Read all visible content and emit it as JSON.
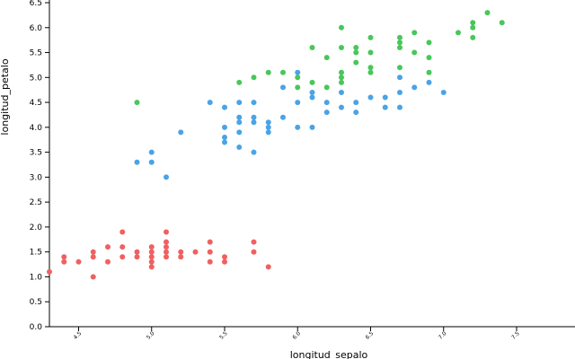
{
  "chart_data": {
    "type": "scatter",
    "xlabel": "longitud_sepalo",
    "ylabel": "longitud_petalo",
    "xlim": [
      4.3,
      7.9
    ],
    "ylim": [
      0,
      6.5
    ],
    "x_ticks": [
      "4.5",
      "5.0",
      "5.5",
      "6.0",
      "6.5",
      "7.0",
      "7.5"
    ],
    "y_ticks": [
      "0.0",
      "0.5",
      "1.0",
      "1.5",
      "2.0",
      "2.5",
      "3.0",
      "3.5",
      "4.0",
      "4.5",
      "5.0",
      "5.5",
      "6.0",
      "6.5"
    ],
    "grid": false,
    "series": [
      {
        "color": "#f06060",
        "points": [
          [
            4.3,
            1.1
          ],
          [
            4.4,
            1.3
          ],
          [
            4.4,
            1.4
          ],
          [
            4.5,
            1.3
          ],
          [
            4.6,
            1.0
          ],
          [
            4.6,
            1.4
          ],
          [
            4.6,
            1.5
          ],
          [
            4.7,
            1.3
          ],
          [
            4.7,
            1.6
          ],
          [
            4.8,
            1.4
          ],
          [
            4.8,
            1.6
          ],
          [
            4.8,
            1.9
          ],
          [
            4.9,
            1.4
          ],
          [
            4.9,
            1.5
          ],
          [
            5.0,
            1.2
          ],
          [
            5.0,
            1.3
          ],
          [
            5.0,
            1.4
          ],
          [
            5.0,
            1.5
          ],
          [
            5.0,
            1.6
          ],
          [
            5.1,
            1.4
          ],
          [
            5.1,
            1.5
          ],
          [
            5.1,
            1.6
          ],
          [
            5.1,
            1.7
          ],
          [
            5.1,
            1.9
          ],
          [
            5.2,
            1.4
          ],
          [
            5.2,
            1.5
          ],
          [
            5.3,
            1.5
          ],
          [
            5.4,
            1.3
          ],
          [
            5.4,
            1.5
          ],
          [
            5.4,
            1.7
          ],
          [
            5.5,
            1.3
          ],
          [
            5.5,
            1.4
          ],
          [
            5.7,
            1.5
          ],
          [
            5.7,
            1.7
          ],
          [
            5.8,
            1.2
          ]
        ]
      },
      {
        "color": "#4aa3e6",
        "points": [
          [
            4.9,
            3.3
          ],
          [
            5.0,
            3.3
          ],
          [
            5.0,
            3.5
          ],
          [
            5.1,
            3.0
          ],
          [
            5.2,
            3.9
          ],
          [
            5.4,
            4.5
          ],
          [
            5.5,
            3.7
          ],
          [
            5.5,
            3.8
          ],
          [
            5.5,
            4.0
          ],
          [
            5.5,
            4.4
          ],
          [
            5.6,
            3.6
          ],
          [
            5.6,
            3.9
          ],
          [
            5.6,
            4.1
          ],
          [
            5.6,
            4.2
          ],
          [
            5.6,
            4.5
          ],
          [
            5.7,
            3.5
          ],
          [
            5.7,
            4.1
          ],
          [
            5.7,
            4.2
          ],
          [
            5.7,
            4.5
          ],
          [
            5.8,
            3.9
          ],
          [
            5.8,
            4.0
          ],
          [
            5.8,
            4.1
          ],
          [
            5.9,
            4.2
          ],
          [
            5.9,
            4.8
          ],
          [
            6.0,
            4.0
          ],
          [
            6.0,
            4.5
          ],
          [
            6.0,
            5.1
          ],
          [
            6.1,
            4.0
          ],
          [
            6.1,
            4.6
          ],
          [
            6.1,
            4.7
          ],
          [
            6.2,
            4.3
          ],
          [
            6.2,
            4.5
          ],
          [
            6.3,
            4.4
          ],
          [
            6.3,
            4.7
          ],
          [
            6.4,
            4.3
          ],
          [
            6.4,
            4.5
          ],
          [
            6.5,
            4.6
          ],
          [
            6.6,
            4.4
          ],
          [
            6.6,
            4.6
          ],
          [
            6.7,
            4.4
          ],
          [
            6.7,
            4.7
          ],
          [
            6.7,
            5.0
          ],
          [
            6.8,
            4.8
          ],
          [
            6.9,
            4.9
          ],
          [
            7.0,
            4.7
          ]
        ]
      },
      {
        "color": "#48c75a",
        "points": [
          [
            4.9,
            4.5
          ],
          [
            5.6,
            4.9
          ],
          [
            5.7,
            5.0
          ],
          [
            5.8,
            5.1
          ],
          [
            5.9,
            5.1
          ],
          [
            6.0,
            4.8
          ],
          [
            6.0,
            5.0
          ],
          [
            6.1,
            4.9
          ],
          [
            6.1,
            5.6
          ],
          [
            6.2,
            4.8
          ],
          [
            6.2,
            5.4
          ],
          [
            6.3,
            4.9
          ],
          [
            6.3,
            5.0
          ],
          [
            6.3,
            5.1
          ],
          [
            6.3,
            5.6
          ],
          [
            6.3,
            6.0
          ],
          [
            6.4,
            5.3
          ],
          [
            6.4,
            5.5
          ],
          [
            6.4,
            5.6
          ],
          [
            6.5,
            5.1
          ],
          [
            6.5,
            5.2
          ],
          [
            6.5,
            5.5
          ],
          [
            6.5,
            5.8
          ],
          [
            6.7,
            5.2
          ],
          [
            6.7,
            5.6
          ],
          [
            6.7,
            5.7
          ],
          [
            6.7,
            5.8
          ],
          [
            6.8,
            5.5
          ],
          [
            6.8,
            5.9
          ],
          [
            6.9,
            5.1
          ],
          [
            6.9,
            5.4
          ],
          [
            6.9,
            5.7
          ],
          [
            7.1,
            5.9
          ],
          [
            7.2,
            5.8
          ],
          [
            7.2,
            6.0
          ],
          [
            7.2,
            6.1
          ],
          [
            7.3,
            6.3
          ],
          [
            7.4,
            6.1
          ]
        ]
      }
    ]
  }
}
